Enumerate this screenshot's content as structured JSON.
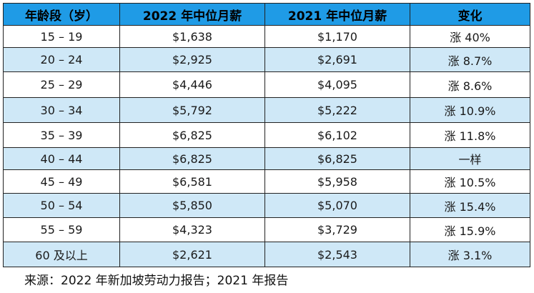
{
  "table": {
    "headers": [
      "年龄段（岁）",
      "2022 年中位月薪",
      "2021 年中位月薪",
      "变化"
    ],
    "rows": [
      {
        "age": "15 – 19",
        "y2022": "$1,638",
        "y2021": "$1,170",
        "change": "涨 40%"
      },
      {
        "age": "20 – 24",
        "y2022": "$2,925",
        "y2021": "$2,691",
        "change": "涨 8.7%"
      },
      {
        "age": "25 – 29",
        "y2022": "$4,446",
        "y2021": "$4,095",
        "change": "涨 8.6%"
      },
      {
        "age": "30 – 34",
        "y2022": "$5,792",
        "y2021": "$5,222",
        "change": "涨 10.9%"
      },
      {
        "age": "35 – 39",
        "y2022": "$6,825",
        "y2021": "$6,102",
        "change": "涨 11.8%"
      },
      {
        "age": "40 – 44",
        "y2022": "$6,825",
        "y2021": "$6,825",
        "change": "一样"
      },
      {
        "age": "45 – 49",
        "y2022": "$6,581",
        "y2021": "$5,958",
        "change": "涨 10.5%"
      },
      {
        "age": "50 – 54",
        "y2022": "$5,850",
        "y2021": "$5,070",
        "change": "涨 15.4%"
      },
      {
        "age": "55 – 59",
        "y2022": "$4,323",
        "y2021": "$3,729",
        "change": "涨 15.9%"
      },
      {
        "age": "60 及以上",
        "y2022": "$2,621",
        "y2021": "$2,543",
        "change": "涨 3.1%"
      }
    ]
  },
  "source": "来源：2022 年新加坡劳动力报告；2021 年报告",
  "colors": {
    "header": "#1f9be6",
    "stripe": "#cfe8f7"
  }
}
